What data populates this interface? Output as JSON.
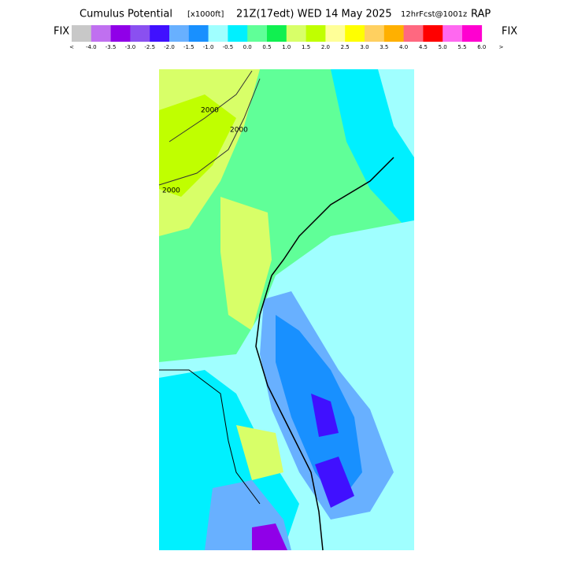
{
  "header": {
    "title": "Cumulus Potential",
    "units": "[x1000ft]",
    "valid": "21Z(17edt) WED 14 May 2025",
    "forecast": "12hrFcst@1001z",
    "model": "RAP"
  },
  "legend": {
    "left_label": "FIX",
    "right_label": "FIX",
    "colors": [
      "#c8c8c8",
      "#c070f0",
      "#9000e8",
      "#8a50f0",
      "#4010ff",
      "#68b0ff",
      "#1890ff",
      "#a0ffff",
      "#00f0ff",
      "#60ff98",
      "#10f050",
      "#d8ff68",
      "#c0ff00",
      "#ffff98",
      "#ffff00",
      "#ffd060",
      "#ffb000",
      "#ff6880",
      "#ff0000",
      "#ff68f0",
      "#ff00d0"
    ],
    "labels": [
      "<",
      "-4.0",
      "-3.5",
      "-3.0",
      "-2.5",
      "-2.0",
      "-1.5",
      "-1.0",
      "-0.5",
      "0.0",
      "0.5",
      "1.0",
      "1.5",
      "2.0",
      "2.5",
      "3.0",
      "3.5",
      "4.0",
      "4.5",
      "5.0",
      "5.5",
      "6.0"
    ],
    "end_label": ">"
  },
  "map": {
    "contour_labels": [
      "2000",
      "2000",
      "2000"
    ]
  }
}
